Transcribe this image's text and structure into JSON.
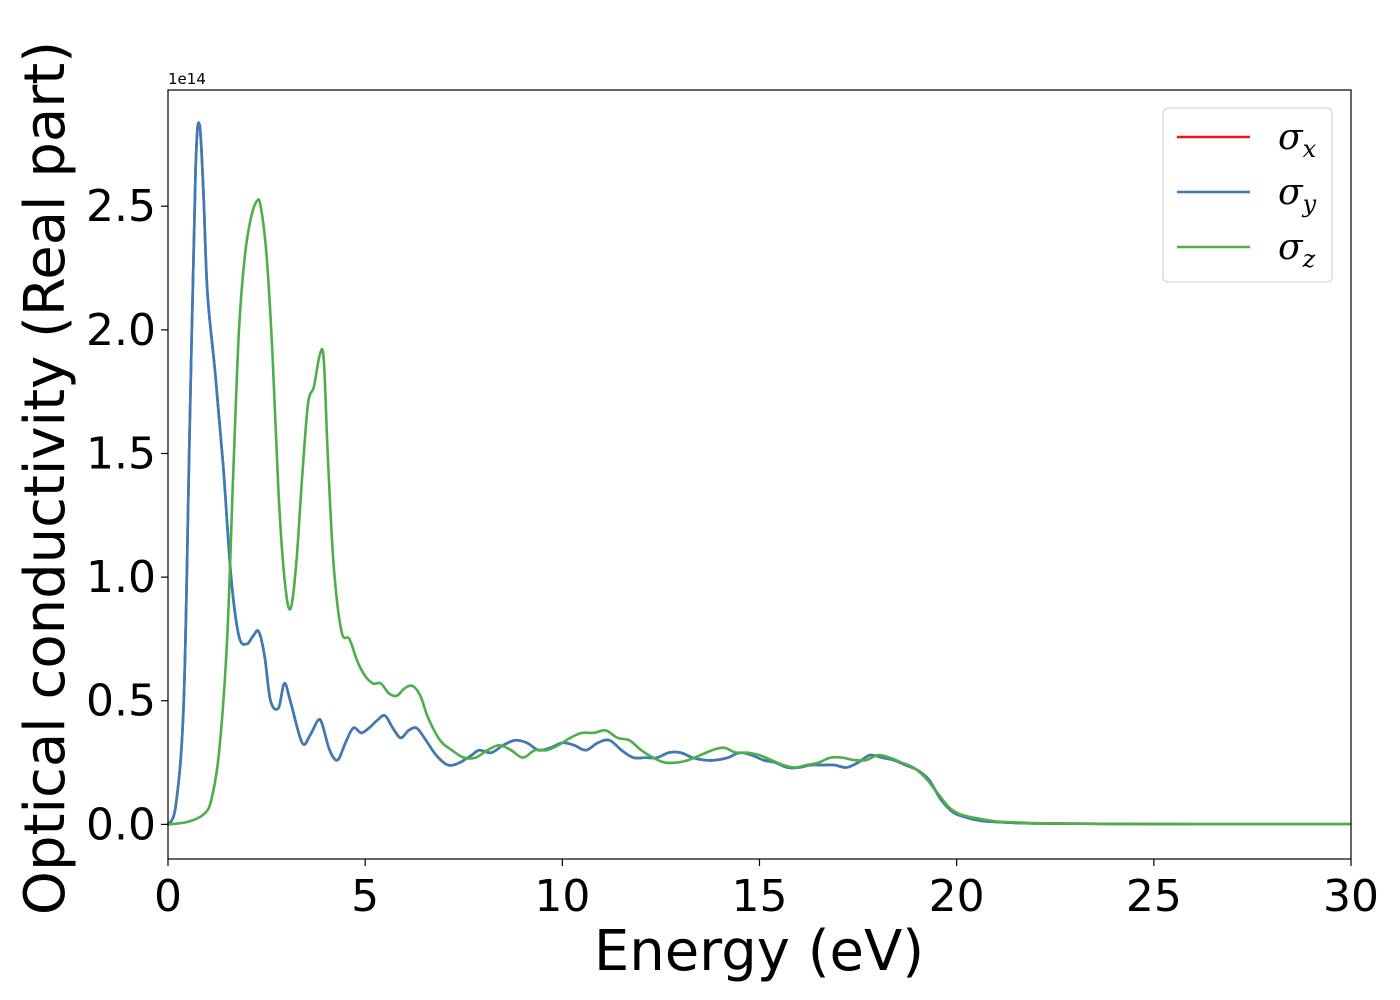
{
  "chart_data": {
    "type": "line",
    "xlabel": "Energy (eV)",
    "ylabel": "Optical conductivity (Real part)",
    "y_offset_label": "1e14",
    "xlim": [
      0,
      30
    ],
    "ylim": [
      -0.14,
      2.97
    ],
    "x_ticks": [
      0,
      5,
      10,
      15,
      20,
      25,
      30
    ],
    "x_tick_labels": [
      "0",
      "5",
      "10",
      "15",
      "20",
      "25",
      "30"
    ],
    "y_ticks": [
      0.0,
      0.5,
      1.0,
      1.5,
      2.0,
      2.5
    ],
    "y_tick_labels": [
      "0.0",
      "0.5",
      "1.0",
      "1.5",
      "2.0",
      "2.5"
    ],
    "grid": false,
    "legend_position": "top-right",
    "series": [
      {
        "name": "σx",
        "base": "σ",
        "sub": "x",
        "color": "#e41a1c",
        "x": [
          0,
          0.2,
          0.4,
          0.55,
          0.7,
          0.8,
          0.9,
          1.0,
          1.2,
          1.4,
          1.6,
          1.8,
          2.0,
          2.15,
          2.3,
          2.45,
          2.6,
          2.8,
          2.95,
          3.1,
          3.4,
          3.6,
          3.8,
          3.9,
          4.1,
          4.3,
          4.5,
          4.7,
          4.9,
          5.1,
          5.3,
          5.5,
          5.7,
          5.9,
          6.1,
          6.3,
          6.5,
          6.8,
          7.1,
          7.4,
          7.7,
          7.9,
          8.2,
          8.5,
          8.8,
          9.1,
          9.4,
          9.7,
          10.0,
          10.3,
          10.6,
          10.9,
          11.2,
          11.5,
          11.8,
          12.1,
          12.4,
          12.7,
          13.0,
          13.3,
          13.6,
          13.9,
          14.2,
          14.5,
          14.8,
          15.1,
          15.4,
          15.7,
          16.0,
          16.3,
          16.6,
          16.9,
          17.2,
          17.5,
          17.8,
          18.1,
          18.4,
          18.7,
          19.0,
          19.3,
          19.6,
          19.9,
          20.2,
          20.6,
          21.0,
          21.5,
          22.0,
          23,
          24,
          26,
          28,
          30
        ],
        "y": [
          0,
          0.08,
          0.5,
          1.6,
          2.65,
          2.83,
          2.55,
          2.15,
          1.82,
          1.45,
          1.0,
          0.76,
          0.73,
          0.76,
          0.78,
          0.68,
          0.5,
          0.47,
          0.57,
          0.5,
          0.33,
          0.36,
          0.42,
          0.41,
          0.3,
          0.26,
          0.33,
          0.39,
          0.37,
          0.39,
          0.42,
          0.44,
          0.39,
          0.35,
          0.38,
          0.39,
          0.35,
          0.28,
          0.24,
          0.25,
          0.28,
          0.3,
          0.29,
          0.32,
          0.34,
          0.33,
          0.3,
          0.31,
          0.33,
          0.32,
          0.3,
          0.33,
          0.34,
          0.3,
          0.27,
          0.27,
          0.27,
          0.29,
          0.29,
          0.27,
          0.26,
          0.26,
          0.27,
          0.29,
          0.28,
          0.26,
          0.25,
          0.23,
          0.23,
          0.24,
          0.24,
          0.24,
          0.23,
          0.25,
          0.28,
          0.27,
          0.26,
          0.24,
          0.22,
          0.18,
          0.1,
          0.05,
          0.03,
          0.015,
          0.01,
          0.006,
          0.004,
          0.003,
          0.002,
          0.001,
          0.001,
          0.001
        ]
      },
      {
        "name": "σy",
        "base": "σ",
        "sub": "y",
        "color": "#377eb8",
        "x": [
          0,
          0.2,
          0.4,
          0.55,
          0.7,
          0.8,
          0.9,
          1.0,
          1.2,
          1.4,
          1.6,
          1.8,
          2.0,
          2.15,
          2.3,
          2.45,
          2.6,
          2.8,
          2.95,
          3.1,
          3.4,
          3.6,
          3.8,
          3.9,
          4.1,
          4.3,
          4.5,
          4.7,
          4.9,
          5.1,
          5.3,
          5.5,
          5.7,
          5.9,
          6.1,
          6.3,
          6.5,
          6.8,
          7.1,
          7.4,
          7.7,
          7.9,
          8.2,
          8.5,
          8.8,
          9.1,
          9.4,
          9.7,
          10.0,
          10.3,
          10.6,
          10.9,
          11.2,
          11.5,
          11.8,
          12.1,
          12.4,
          12.7,
          13.0,
          13.3,
          13.6,
          13.9,
          14.2,
          14.5,
          14.8,
          15.1,
          15.4,
          15.7,
          16.0,
          16.3,
          16.6,
          16.9,
          17.2,
          17.5,
          17.8,
          18.1,
          18.4,
          18.7,
          19.0,
          19.3,
          19.6,
          19.9,
          20.2,
          20.6,
          21.0,
          21.5,
          22.0,
          23,
          24,
          26,
          28,
          30
        ],
        "y": [
          0,
          0.08,
          0.5,
          1.6,
          2.65,
          2.83,
          2.55,
          2.15,
          1.82,
          1.45,
          1.0,
          0.76,
          0.73,
          0.76,
          0.78,
          0.68,
          0.5,
          0.47,
          0.57,
          0.5,
          0.33,
          0.36,
          0.42,
          0.41,
          0.3,
          0.26,
          0.33,
          0.39,
          0.37,
          0.39,
          0.42,
          0.44,
          0.39,
          0.35,
          0.38,
          0.39,
          0.35,
          0.28,
          0.24,
          0.25,
          0.28,
          0.3,
          0.29,
          0.32,
          0.34,
          0.33,
          0.3,
          0.31,
          0.33,
          0.32,
          0.3,
          0.33,
          0.34,
          0.3,
          0.27,
          0.27,
          0.27,
          0.29,
          0.29,
          0.27,
          0.26,
          0.26,
          0.27,
          0.29,
          0.28,
          0.26,
          0.25,
          0.23,
          0.23,
          0.24,
          0.24,
          0.24,
          0.23,
          0.25,
          0.28,
          0.27,
          0.26,
          0.24,
          0.22,
          0.18,
          0.1,
          0.05,
          0.03,
          0.015,
          0.01,
          0.006,
          0.004,
          0.003,
          0.002,
          0.001,
          0.001,
          0.001
        ]
      },
      {
        "name": "σz",
        "base": "σ",
        "sub": "z",
        "color": "#4daf4a",
        "x": [
          0,
          0.5,
          0.9,
          1.1,
          1.3,
          1.5,
          1.65,
          1.8,
          1.95,
          2.1,
          2.25,
          2.35,
          2.5,
          2.65,
          2.8,
          2.95,
          3.1,
          3.25,
          3.4,
          3.55,
          3.7,
          3.85,
          3.95,
          4.05,
          4.2,
          4.4,
          4.6,
          4.8,
          5.0,
          5.2,
          5.4,
          5.6,
          5.8,
          6.0,
          6.2,
          6.4,
          6.6,
          6.9,
          7.2,
          7.5,
          7.8,
          8.1,
          8.4,
          8.7,
          9.0,
          9.3,
          9.6,
          9.9,
          10.2,
          10.5,
          10.8,
          11.1,
          11.4,
          11.7,
          12.0,
          12.3,
          12.6,
          12.9,
          13.2,
          13.5,
          13.8,
          14.1,
          14.4,
          14.7,
          15.0,
          15.3,
          15.6,
          15.9,
          16.2,
          16.5,
          16.8,
          17.1,
          17.4,
          17.7,
          18.0,
          18.3,
          18.6,
          18.9,
          19.2,
          19.5,
          19.8,
          20.1,
          20.5,
          21.0,
          21.5,
          22.0,
          23,
          24,
          26,
          28,
          30
        ],
        "y": [
          0,
          0.01,
          0.04,
          0.1,
          0.3,
          0.75,
          1.4,
          2.0,
          2.3,
          2.45,
          2.52,
          2.5,
          2.3,
          1.9,
          1.35,
          1.0,
          0.87,
          1.05,
          1.4,
          1.7,
          1.77,
          1.9,
          1.88,
          1.5,
          1.05,
          0.78,
          0.75,
          0.66,
          0.6,
          0.57,
          0.57,
          0.53,
          0.52,
          0.55,
          0.56,
          0.52,
          0.43,
          0.34,
          0.3,
          0.27,
          0.27,
          0.3,
          0.32,
          0.3,
          0.27,
          0.3,
          0.3,
          0.32,
          0.35,
          0.37,
          0.37,
          0.38,
          0.35,
          0.34,
          0.3,
          0.27,
          0.25,
          0.25,
          0.26,
          0.28,
          0.3,
          0.31,
          0.29,
          0.29,
          0.28,
          0.26,
          0.24,
          0.23,
          0.24,
          0.25,
          0.27,
          0.27,
          0.26,
          0.26,
          0.28,
          0.27,
          0.25,
          0.23,
          0.19,
          0.13,
          0.07,
          0.04,
          0.025,
          0.012,
          0.008,
          0.005,
          0.003,
          0.002,
          0.001,
          0.001,
          0.001
        ]
      }
    ]
  }
}
